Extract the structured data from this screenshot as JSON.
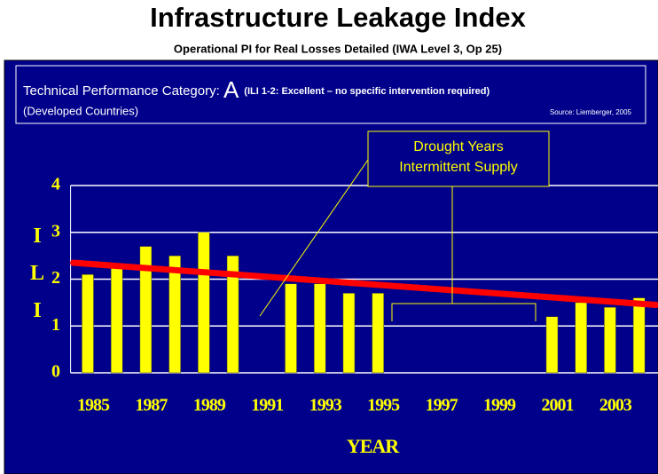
{
  "chart_data": {
    "type": "bar",
    "title": "Infrastructure  Leakage  Index",
    "subtitle": "Operational PI for Real Losses Detailed (IWA Level 3, Op 25)",
    "info": {
      "line1": "Technical Performance Category: ",
      "category": "A",
      "category_note": "(ILI 1-2: Excellent – no specific intervention required)",
      "line2": "(Developed Countries)",
      "source": "Source: Liemberger, 2005"
    },
    "annotation": [
      "Drought Years",
      "Intermittent Supply"
    ],
    "x_label": "YEAR",
    "y_label": "ILI",
    "categories": [
      "1985",
      null,
      "1987",
      null,
      "1989",
      null,
      "1991",
      null,
      "1993",
      null,
      "1995",
      null,
      "1997",
      null,
      "1999",
      null,
      "2001",
      null,
      "2003",
      null
    ],
    "values": [
      2.1,
      2.3,
      2.7,
      2.5,
      3.0,
      2.5,
      null,
      1.9,
      1.9,
      1.7,
      1.7,
      null,
      null,
      null,
      null,
      null,
      1.2,
      1.5,
      1.4,
      1.6
    ],
    "color": "#ffff00",
    "trendline": {
      "color": "#ff0000",
      "values": [
        2.35,
        1.45
      ]
    },
    "ylim": [
      0,
      4
    ],
    "yticks": [
      0,
      1,
      2,
      3,
      4
    ],
    "grid": true
  }
}
